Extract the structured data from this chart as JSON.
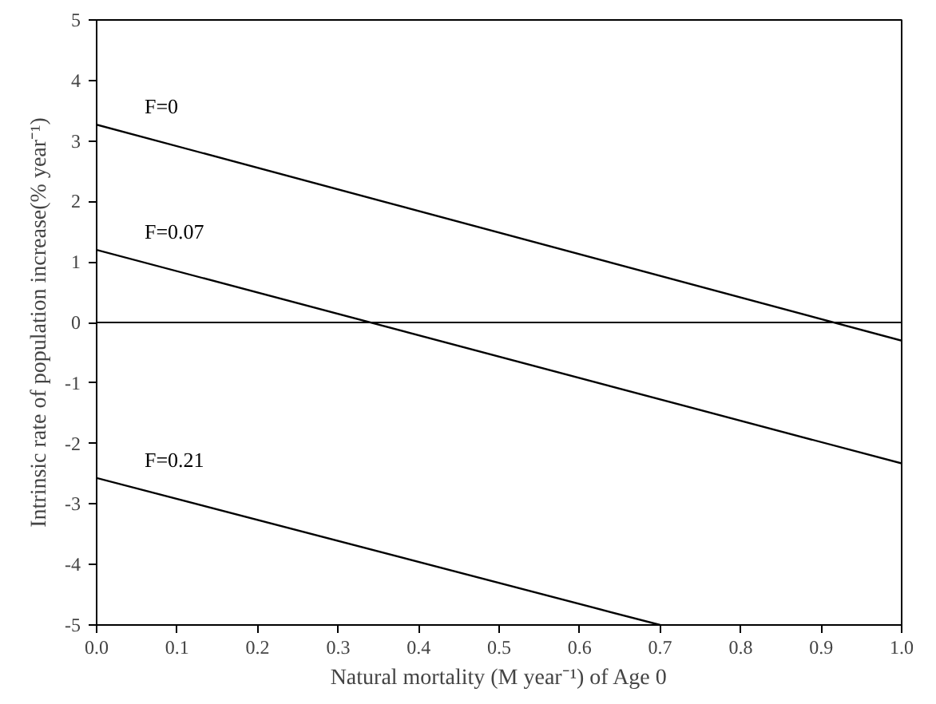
{
  "chart_data": {
    "type": "line",
    "xlabel": "Natural mortality (M year⁻¹) of Age 0",
    "ylabel": "Intrinsic rate of population increase(% year⁻¹)",
    "series": [
      {
        "name": "F=0",
        "color": "#000000",
        "x": [
          0.0,
          1.0
        ],
        "values": [
          3.27,
          -0.3
        ]
      },
      {
        "name": "F=0.07",
        "color": "#000000",
        "x": [
          0.0,
          1.0
        ],
        "values": [
          1.2,
          -2.33
        ]
      },
      {
        "name": "F=0.21",
        "color": "#000000",
        "x": [
          0.0,
          0.7
        ],
        "values": [
          -2.57,
          -5.0
        ]
      }
    ],
    "xlim": [
      0.0,
      1.0
    ],
    "ylim": [
      -5,
      5
    ],
    "xticks": [
      {
        "value": 0.0,
        "label": "0.0"
      },
      {
        "value": 0.1,
        "label": "0.1"
      },
      {
        "value": 0.2,
        "label": "0.2"
      },
      {
        "value": 0.3,
        "label": "0.3"
      },
      {
        "value": 0.4,
        "label": "0.4"
      },
      {
        "value": 0.5,
        "label": "0.5"
      },
      {
        "value": 0.6,
        "label": "0.6"
      },
      {
        "value": 0.7,
        "label": "0.7"
      },
      {
        "value": 0.8,
        "label": "0.8"
      },
      {
        "value": 0.9,
        "label": "0.9"
      },
      {
        "value": 1.0,
        "label": "1.0"
      }
    ],
    "yticks": [
      -5,
      -4,
      -3,
      -2,
      -1,
      0,
      1,
      2,
      3,
      4,
      5
    ],
    "ref_lines": [
      {
        "axis": "y",
        "value": 0,
        "label": null,
        "color": "#000000"
      }
    ],
    "grid": false,
    "marker": "none",
    "line_style": "solid"
  }
}
